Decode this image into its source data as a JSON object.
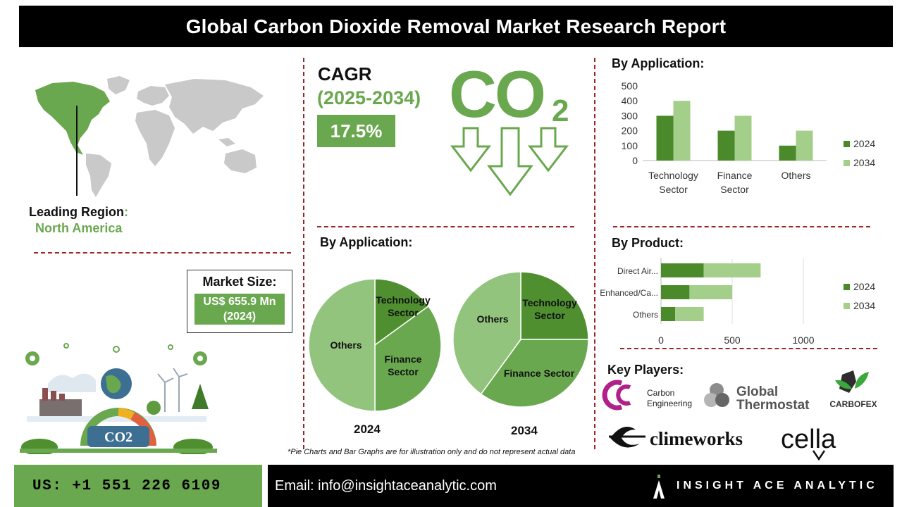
{
  "header": {
    "title": "Global Carbon Dioxide Removal Market Research Report"
  },
  "region": {
    "label": "Leading Region",
    "colon": ":",
    "value": "North America"
  },
  "market": {
    "label": "Market Size:",
    "value_line1": "US$ 655.9 Mn",
    "value_line2": "(2024)"
  },
  "cagr": {
    "title": "CAGR",
    "years": "(2025-2034)",
    "value": "17.5%"
  },
  "co2": {
    "main": "CO",
    "sub": "2"
  },
  "illustration": {
    "label": "CO2"
  },
  "colors": {
    "green": "#6aa84f",
    "dark_green": "#4a8a2a",
    "light_green": "#a3cf8a",
    "pie_light": "#93c47d",
    "pie_dark": "#4f8f2f",
    "pie_mid": "#6aa84f",
    "red_dash": "#9c2525"
  },
  "app_bar_title": "By Application:",
  "app_pie_title": "By Application:",
  "product_title": "By Product:",
  "players_title": "Key Players:",
  "note": "*Pie Charts and Bar Graphs are for illustration only and do not represent actual data",
  "chart_data": [
    {
      "type": "bar",
      "title": "By Application:",
      "categories": [
        "Technology Sector",
        "Finance Sector",
        "Others"
      ],
      "category_lines": [
        [
          "Technology",
          "Sector"
        ],
        [
          "Finance",
          "Sector"
        ],
        [
          "Others"
        ]
      ],
      "series": [
        {
          "name": "2024",
          "values": [
            300,
            200,
            100
          ]
        },
        {
          "name": "2034",
          "values": [
            400,
            300,
            200
          ]
        }
      ],
      "ylim": [
        0,
        500
      ],
      "yticks": [
        0,
        100,
        200,
        300,
        400,
        500
      ],
      "legend": "right",
      "grid": false
    },
    {
      "type": "bar",
      "orientation": "horizontal",
      "stacked": true,
      "title": "By Product:",
      "categories": [
        "Direct Air...",
        "Enhanced/Ca...",
        "Others"
      ],
      "series": [
        {
          "name": "2024",
          "values": [
            300,
            200,
            100
          ]
        },
        {
          "name": "2034",
          "values": [
            400,
            300,
            200
          ]
        }
      ],
      "xlim": [
        0,
        1000
      ],
      "xticks": [
        0,
        500,
        1000
      ],
      "legend": "right",
      "grid": true
    },
    {
      "type": "pie",
      "year": "2024",
      "labels": [
        "Technology Sector",
        "Finance Sector",
        "Others"
      ],
      "values": [
        15,
        35,
        50
      ]
    },
    {
      "type": "pie",
      "year": "2034",
      "labels": [
        "Technology Sector",
        "Finance Sector",
        "Others"
      ],
      "values": [
        25,
        35,
        40
      ]
    }
  ],
  "players": {
    "carbon_engineering": {
      "line1": "Carbon",
      "line2": "Engineering"
    },
    "global_thermostat": {
      "line1": "Global",
      "line2": "Thermostat"
    },
    "carbofex": {
      "name": "CARBOFEX"
    },
    "climeworks": {
      "name": "climeworks"
    },
    "cella": {
      "name": "cella"
    }
  },
  "footer": {
    "phone": "US: +1 551 226 6109",
    "email": "Email: info@insightaceanalytic.com",
    "brand": "INSIGHT ACE ANALYTIC"
  }
}
